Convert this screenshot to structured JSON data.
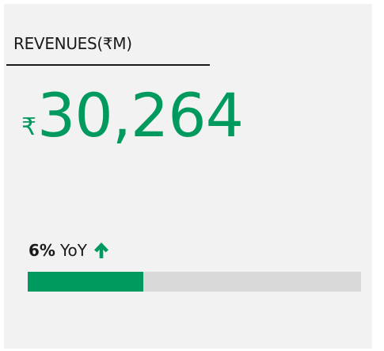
{
  "card": {
    "title": "REVENUES(₹M)",
    "currency": "₹",
    "value": "30,264",
    "change": "6%",
    "change_label": "YoY"
  }
}
